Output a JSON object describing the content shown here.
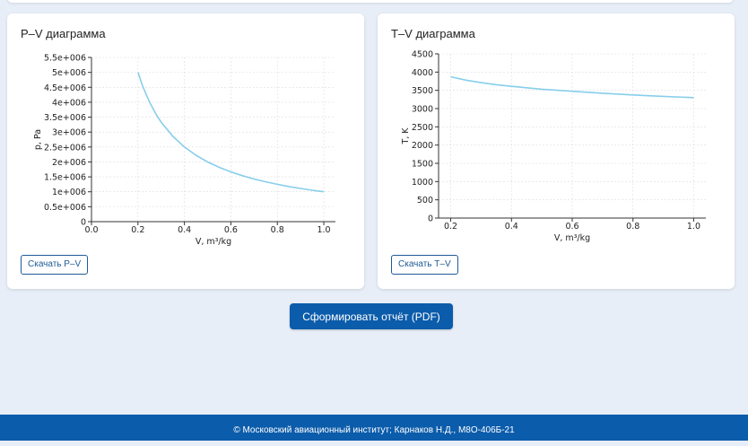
{
  "charts": {
    "pv": {
      "title": "P–V диаграмма",
      "download_label": "Скачать P–V"
    },
    "tv": {
      "title": "T–V диаграмма",
      "download_label": "Скачать T–V"
    }
  },
  "report_button_label": "Сформировать отчёт (PDF)",
  "footer_text": "© Московский авиационный институт; Карнаков Н.Д., М8О-406Б-21",
  "colors": {
    "accent": "#0b5cab",
    "curve": "#87ceeb",
    "background": "#e8eef7"
  },
  "chart_data": [
    {
      "id": "pv",
      "type": "line",
      "title": "P–V диаграмма",
      "xlabel": "V,  m³/kg",
      "ylabel": "p,  Pa",
      "xlim": [
        0.0,
        1.05
      ],
      "ylim": [
        0,
        5500000
      ],
      "xticks": [
        0.0,
        0.2,
        0.4,
        0.6,
        0.8,
        1.0
      ],
      "xtick_labels": [
        "0.0",
        "0.2",
        "0.4",
        "0.6",
        "0.8",
        "1.0"
      ],
      "yticks": [
        0,
        500000,
        1000000,
        1500000,
        2000000,
        2500000,
        3000000,
        3500000,
        4000000,
        4500000,
        5000000,
        5500000
      ],
      "ytick_labels": [
        "0",
        "0.5e+006",
        "1e+006",
        "1.5e+006",
        "2e+006",
        "2.5e+006",
        "3e+006",
        "3.5e+006",
        "4e+006",
        "4.5e+006",
        "5e+006",
        "5.5e+006"
      ],
      "grid": true,
      "series": [
        {
          "x": [
            0.2,
            0.22,
            0.25,
            0.28,
            0.3,
            0.35,
            0.4,
            0.45,
            0.5,
            0.55,
            0.6,
            0.65,
            0.7,
            0.75,
            0.8,
            0.85,
            0.9,
            0.95,
            1.0
          ],
          "y": [
            5000000,
            4545000,
            4000000,
            3571000,
            3333000,
            2857000,
            2500000,
            2222000,
            2000000,
            1818000,
            1667000,
            1538000,
            1429000,
            1333000,
            1250000,
            1176000,
            1111000,
            1053000,
            1000000
          ]
        }
      ]
    },
    {
      "id": "tv",
      "type": "line",
      "title": "T–V диаграмма",
      "xlabel": "V,  m³/kg",
      "ylabel": "T,  K",
      "xlim": [
        0.16,
        1.04
      ],
      "ylim": [
        0,
        4500
      ],
      "xticks": [
        0.2,
        0.4,
        0.6,
        0.8,
        1.0
      ],
      "xtick_labels": [
        "0.2",
        "0.4",
        "0.6",
        "0.8",
        "1.0"
      ],
      "yticks": [
        0,
        500,
        1000,
        1500,
        2000,
        2500,
        3000,
        3500,
        4000,
        4500
      ],
      "ytick_labels": [
        "0",
        "500",
        "1000",
        "1500",
        "2000",
        "2500",
        "3000",
        "3500",
        "4000",
        "4500"
      ],
      "grid": true,
      "series": [
        {
          "x": [
            0.2,
            0.25,
            0.3,
            0.35,
            0.4,
            0.5,
            0.6,
            0.7,
            0.8,
            0.9,
            1.0
          ],
          "y": [
            3870,
            3780,
            3710,
            3655,
            3610,
            3530,
            3475,
            3420,
            3375,
            3335,
            3300
          ]
        }
      ]
    }
  ]
}
